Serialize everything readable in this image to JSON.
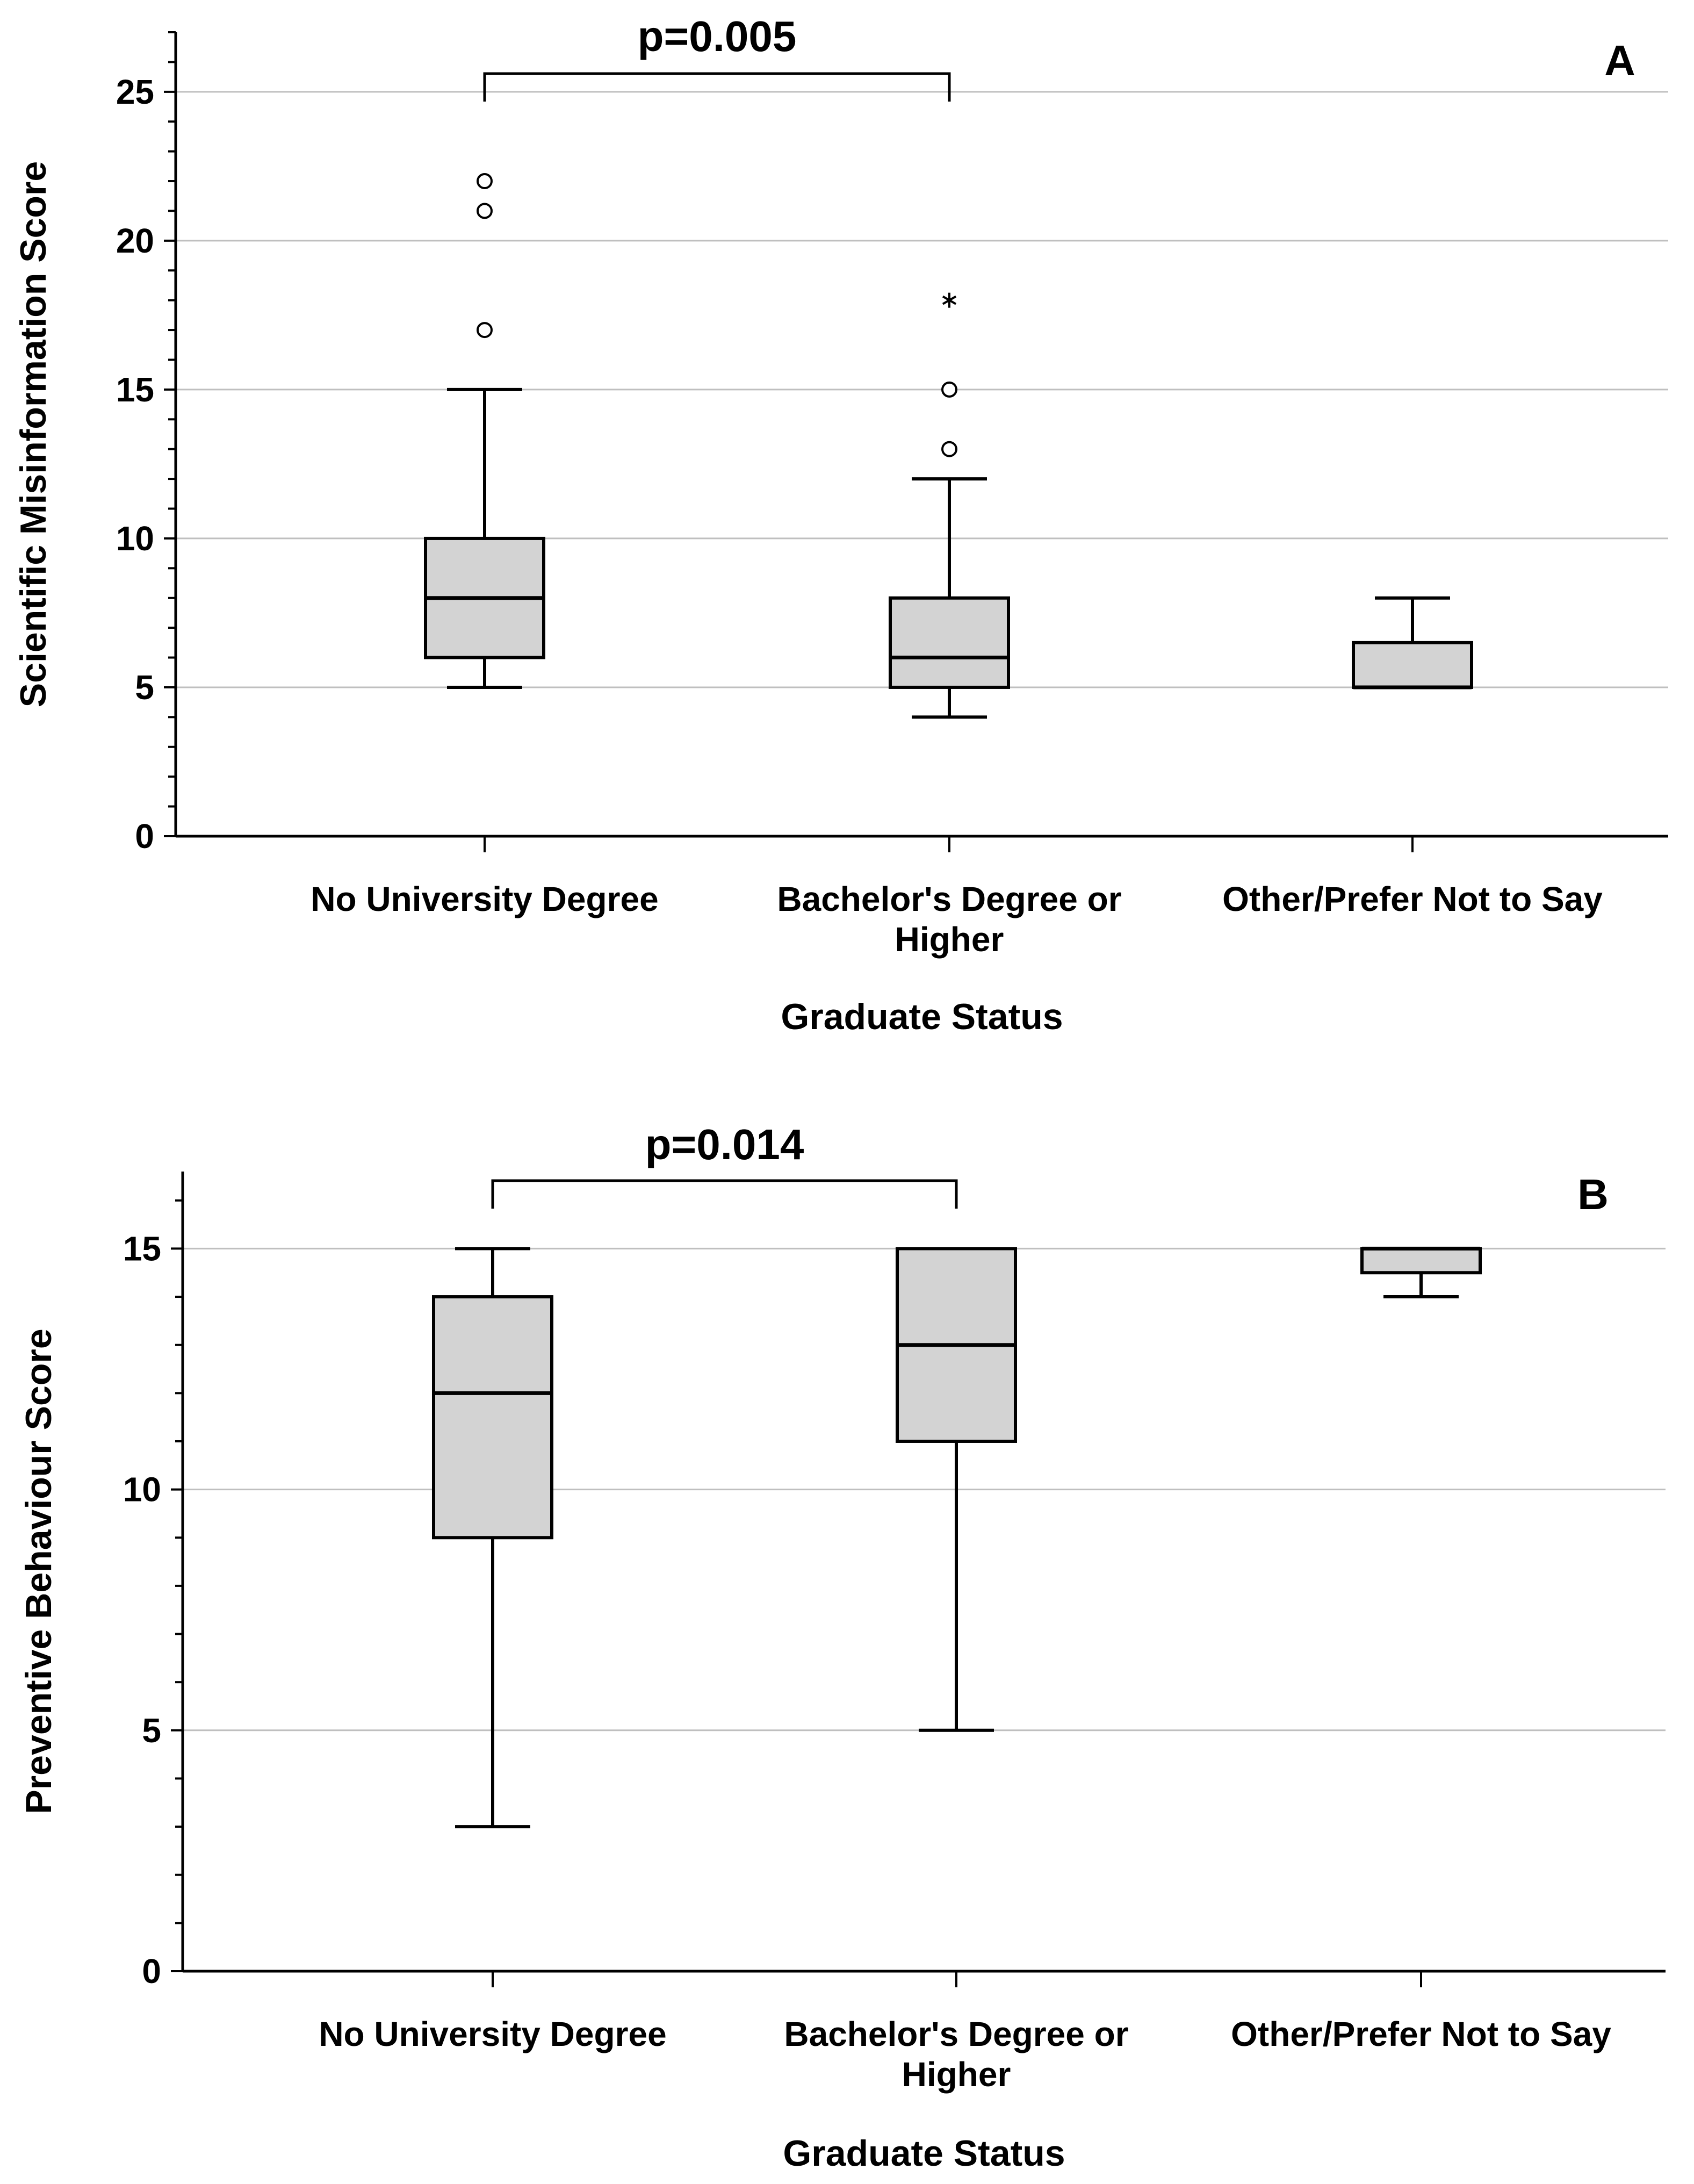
{
  "chart_data": [
    {
      "type": "boxplot",
      "panel_label": "A",
      "title": "",
      "xlabel": "Graduate Status",
      "ylabel": "Scientific Misinformation Score",
      "ylim": [
        0,
        27
      ],
      "yticks": [
        0,
        5,
        10,
        15,
        20,
        25
      ],
      "grid": true,
      "categories": [
        [
          "No University Degree"
        ],
        [
          "Bachelor's Degree or",
          "Higher"
        ],
        [
          "Other/Prefer Not to Say"
        ]
      ],
      "boxes": [
        {
          "whisker_low": 5,
          "q1": 6,
          "median": 8,
          "q3": 10,
          "whisker_high": 15,
          "outliers": [
            17,
            21,
            22
          ],
          "extremes": []
        },
        {
          "whisker_low": 4,
          "q1": 5,
          "median": 6,
          "q3": 8,
          "whisker_high": 12,
          "outliers": [
            13,
            15
          ],
          "extremes": [
            18
          ]
        },
        {
          "whisker_low": 5,
          "q1": 5,
          "median": 5,
          "q3": 6.5,
          "whisker_high": 8,
          "outliers": [],
          "extremes": []
        }
      ],
      "annotation": {
        "text": "p=0.005",
        "from": 0,
        "to": 1
      }
    },
    {
      "type": "boxplot",
      "panel_label": "B",
      "title": "",
      "xlabel": "Graduate Status",
      "ylabel": "Preventive Behaviour Score",
      "ylim": [
        0,
        16.6
      ],
      "yticks": [
        0,
        5,
        10,
        15
      ],
      "grid": true,
      "categories": [
        [
          "No University Degree"
        ],
        [
          "Bachelor's Degree or",
          "Higher"
        ],
        [
          "Other/Prefer Not to Say"
        ]
      ],
      "boxes": [
        {
          "whisker_low": 3,
          "q1": 9,
          "median": 12,
          "q3": 14,
          "whisker_high": 15,
          "outliers": [],
          "extremes": []
        },
        {
          "whisker_low": 5,
          "q1": 11,
          "median": 13,
          "q3": 15,
          "whisker_high": 15,
          "outliers": [],
          "extremes": []
        },
        {
          "whisker_low": 14,
          "q1": 14.5,
          "median": 15,
          "q3": 15,
          "whisker_high": 15,
          "outliers": [],
          "extremes": []
        }
      ],
      "annotation": {
        "text": "p=0.014",
        "from": 0,
        "to": 1
      }
    }
  ],
  "colors": {
    "box_fill": "#d3d3d3",
    "line": "#000000",
    "grid": "#bfbfbf"
  }
}
